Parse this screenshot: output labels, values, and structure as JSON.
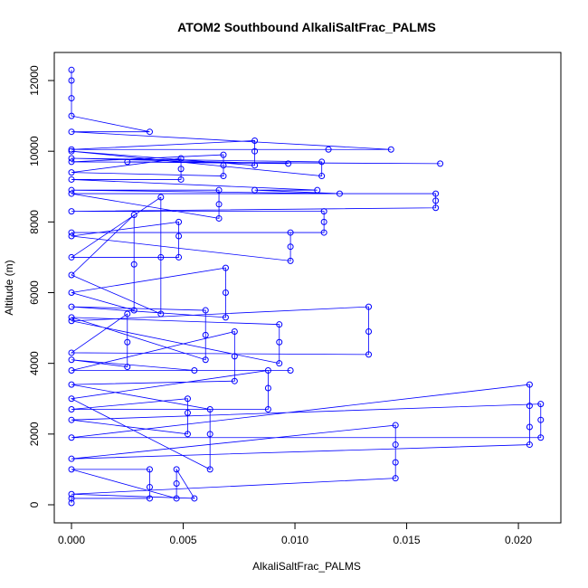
{
  "chart_data": {
    "type": "scatter",
    "connect": true,
    "title": "ATOM2 Southbound AlkaliSaltFrac_PALMS",
    "x_label": "AlkaliSaltFrac_PALMS",
    "y_label": "Altitude (m)",
    "color": "#0000ff",
    "x": [
      0,
      0,
      0.0035,
      0.0035,
      0.0035,
      0,
      0.0047,
      0.0047,
      0.0047,
      0.0055,
      0,
      0.0145,
      0.0145,
      0.0145,
      0.0145,
      0,
      0.0205,
      0.0205,
      0.0205,
      0.0205,
      0,
      0.021,
      0.021,
      0.021,
      0,
      0.0052,
      0.0052,
      0.0052,
      0,
      0.0088,
      0.0088,
      0.0088,
      0,
      0.0062,
      0.0062,
      0.0062,
      0,
      0.0073,
      0.0073,
      0.0073,
      0,
      0.0098,
      0.0055,
      0,
      0.0025,
      0.0025,
      0.0025,
      0,
      0.0133,
      0.0133,
      0.0133,
      0,
      0.0093,
      0.0093,
      0.0093,
      0,
      0.006,
      0.006,
      0.006,
      0,
      0.0069,
      0.0069,
      0.0069,
      0,
      0.0028,
      0.0028,
      0.0028,
      0,
      0.004,
      0.004,
      0.004,
      0,
      0.0048,
      0.0048,
      0.0048,
      0,
      0.0098,
      0.0098,
      0.0098,
      0,
      0.0113,
      0.0113,
      0.0113,
      0,
      0.0163,
      0.0163,
      0.0163,
      0,
      0.0066,
      0.0066,
      0.0066,
      0,
      0.012,
      0.0082,
      0.011,
      0,
      0.0049,
      0.0049,
      0.0049,
      0,
      0.0068,
      0.0068,
      0.0068,
      0,
      0.0165,
      0.0025,
      0.0097,
      0,
      0.0112,
      0.0112,
      0,
      0.0082,
      0.0082,
      0.0082,
      0,
      0.0115,
      0.0143,
      0,
      0.0035,
      0,
      0,
      0,
      0
    ],
    "values": [
      50,
      180,
      180,
      500,
      1000,
      1000,
      180,
      600,
      1000,
      180,
      300,
      750,
      1200,
      1700,
      2250,
      1300,
      1700,
      2200,
      2800,
      3400,
      1900,
      1900,
      2400,
      2850,
      2400,
      2000,
      2600,
      3000,
      2700,
      2700,
      3300,
      3800,
      3000,
      1000,
      2000,
      2700,
      3400,
      3500,
      4200,
      4900,
      3800,
      3800,
      3800,
      4100,
      3900,
      4600,
      5400,
      4300,
      4250,
      4900,
      5600,
      5200,
      4000,
      4600,
      5100,
      5300,
      4100,
      4800,
      5500,
      5600,
      5300,
      6000,
      6700,
      6000,
      5500,
      6800,
      8200,
      6500,
      5400,
      7000,
      8700,
      7000,
      7000,
      7600,
      8000,
      7600,
      6900,
      7300,
      7700,
      7700,
      7700,
      8000,
      8300,
      8300,
      8400,
      8600,
      8800,
      8800,
      8100,
      8500,
      8900,
      8900,
      8800,
      8900,
      8900,
      9200,
      9200,
      9500,
      9800,
      9400,
      9300,
      9600,
      9900,
      9700,
      9650,
      9700,
      9650,
      9800,
      9700,
      9300,
      10000,
      9600,
      10000,
      10300,
      10050,
      10050,
      10050,
      10550,
      10550,
      11000,
      11500,
      12000,
      12300
    ],
    "xlim": [
      -0.00077,
      0.0219
    ],
    "ylim": [
      -512,
      12794
    ],
    "xticks": [
      {
        "value": 0,
        "label": "0.000"
      },
      {
        "value": 0.005,
        "label": "0.005"
      },
      {
        "value": 0.01,
        "label": "0.010"
      },
      {
        "value": 0.015,
        "label": "0.015"
      },
      {
        "value": 0.02,
        "label": "0.020"
      }
    ],
    "yticks": [
      0,
      2000,
      4000,
      6000,
      8000,
      10000,
      12000
    ]
  }
}
